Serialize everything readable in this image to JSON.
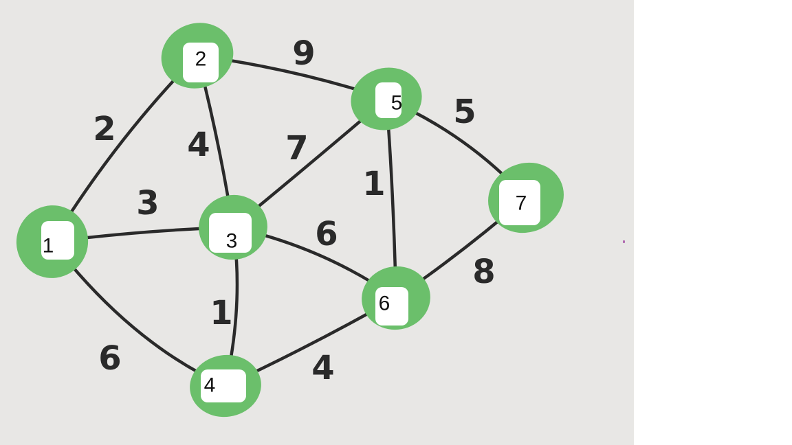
{
  "graph": {
    "nodes": [
      {
        "id": "1",
        "label": "1"
      },
      {
        "id": "2",
        "label": "2"
      },
      {
        "id": "3",
        "label": "3"
      },
      {
        "id": "4",
        "label": "4"
      },
      {
        "id": "5",
        "label": "5"
      },
      {
        "id": "6",
        "label": "6"
      },
      {
        "id": "7",
        "label": "7"
      }
    ],
    "edges": [
      {
        "from": "1",
        "to": "2",
        "weight": "2"
      },
      {
        "from": "1",
        "to": "3",
        "weight": "3"
      },
      {
        "from": "1",
        "to": "4",
        "weight": "6"
      },
      {
        "from": "2",
        "to": "3",
        "weight": "4"
      },
      {
        "from": "2",
        "to": "5",
        "weight": "9"
      },
      {
        "from": "3",
        "to": "5",
        "weight": "7"
      },
      {
        "from": "3",
        "to": "6",
        "weight": "6"
      },
      {
        "from": "3",
        "to": "4",
        "weight": "1"
      },
      {
        "from": "5",
        "to": "6",
        "weight": "1"
      },
      {
        "from": "5",
        "to": "7",
        "weight": "5"
      },
      {
        "from": "4",
        "to": "6",
        "weight": "4"
      },
      {
        "from": "6",
        "to": "7",
        "weight": "8"
      }
    ]
  },
  "colors": {
    "node_fill": "#6bbf6b",
    "edge": "#2a2a2a",
    "background": "#e8e7e5"
  }
}
